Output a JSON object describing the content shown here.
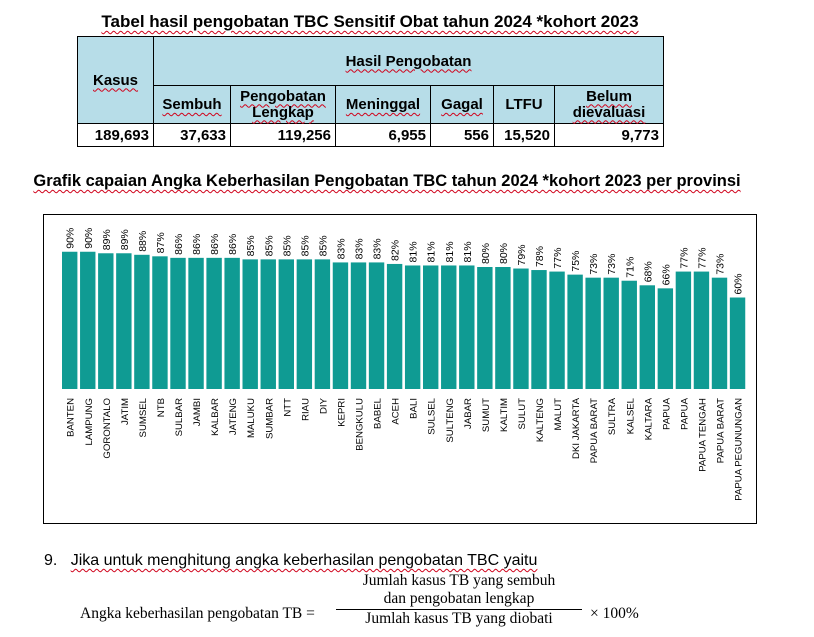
{
  "table": {
    "title": "Tabel hasil pengobatan TBC Sensitif Obat tahun 2024 *kohort 2023",
    "kasus_header": "Kasus",
    "group_header": "Hasil Pengobatan",
    "columns": [
      "Sembuh",
      "Pengobatan Lengkap",
      "Meninggal",
      "Gagal",
      "LTFU",
      "Belum dievaluasi"
    ],
    "values": [
      "189,693",
      "37,633",
      "119,256",
      "6,955",
      "556",
      "15,520",
      "9,773"
    ]
  },
  "chart_data": {
    "type": "bar",
    "title": "Grafik capaian Angka Keberhasilan Pengobatan TBC tahun 2024 *kohort 2023 per provinsi",
    "categories": [
      "BANTEN",
      "LAMPUNG",
      "GORONTALO",
      "JATIM",
      "SUMSEL",
      "NTB",
      "SULBAR",
      "JAMBI",
      "KALBAR",
      "JATENG",
      "MALUKU",
      "SUMBAR",
      "NTT",
      "RIAU",
      "DIY",
      "KEPRI",
      "BENGKULU",
      "BABEL",
      "ACEH",
      "BALI",
      "SULSEL",
      "SULTENG",
      "JABAR",
      "SUMUT",
      "KALTIM",
      "SULUT",
      "KALTENG",
      "MALUT",
      "DKI JAKARTA",
      "PAPUA BARAT",
      "SULTRA",
      "KALSEL",
      "KALTARA",
      "PAPUA",
      "PAPUA",
      "PAPUA TENGAH",
      "PAPUA BARAT",
      "PAPUA PEGUNUNGAN"
    ],
    "values": [
      90,
      90,
      89,
      89,
      88,
      87,
      86,
      86,
      86,
      86,
      85,
      85,
      85,
      85,
      85,
      83,
      83,
      83,
      82,
      81,
      81,
      81,
      81,
      80,
      80,
      79,
      78,
      77,
      75,
      73,
      73,
      71,
      68,
      66,
      77,
      77,
      73,
      60
    ],
    "labels": [
      "90%",
      "90%",
      "89%",
      "89%",
      "88%",
      "87%",
      "86%",
      "86%",
      "86%",
      "86%",
      "85%",
      "85%",
      "85%",
      "85%",
      "85%",
      "83%",
      "83%",
      "83%",
      "82%",
      "81%",
      "81%",
      "81%",
      "81%",
      "80%",
      "80%",
      "79%",
      "78%",
      "77%",
      "75%",
      "73%",
      "73%",
      "71%",
      "68%",
      "66%",
      "77%",
      "77%",
      "73%",
      "60%"
    ],
    "ylim": [
      0,
      100
    ],
    "grid": false,
    "color": "#0f9b93"
  },
  "formula": {
    "intro_number": "9.",
    "intro_text": "Jika untuk menghitung angka keberhasilan pengobatan TBC yaitu",
    "lhs": "Angka keberhasilan pengobatan TB =",
    "numerator_line1": "Jumlah kasus TB yang sembuh",
    "numerator_line2": "dan pengobatan lengkap",
    "denominator": "Jumlah kasus TB yang diobati",
    "multiplier": "× 100%"
  }
}
